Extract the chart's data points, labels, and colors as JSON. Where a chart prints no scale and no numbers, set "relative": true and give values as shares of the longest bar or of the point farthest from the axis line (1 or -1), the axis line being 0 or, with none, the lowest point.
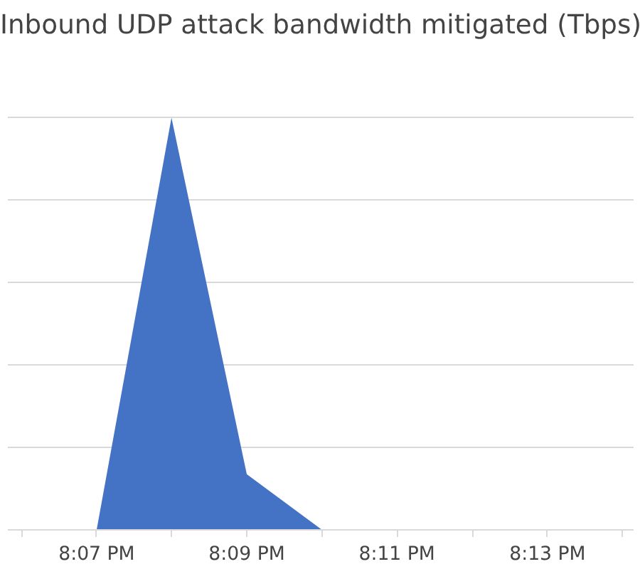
{
  "chart_data": {
    "type": "area",
    "title": "Inbound UDP attack bandwidth mitigated (Tbps)",
    "relative": true,
    "x": [
      20.1167,
      20.1333,
      20.15,
      20.1667
    ],
    "series": [
      {
        "color": "#4472c4",
        "values": [
          0,
          1,
          0.135,
          0
        ]
      }
    ],
    "xlim": [
      20.097,
      20.2358
    ],
    "xticks": [
      {
        "value": 20.1,
        "label": null
      },
      {
        "value": 20.1167,
        "label": "8:07 PM"
      },
      {
        "value": 20.1333,
        "label": null
      },
      {
        "value": 20.15,
        "label": "8:09 PM"
      },
      {
        "value": 20.1667,
        "label": null
      },
      {
        "value": 20.1833,
        "label": "8:11 PM"
      },
      {
        "value": 20.2,
        "label": null
      },
      {
        "value": 20.2167,
        "label": "8:13 PM"
      },
      {
        "value": 20.2333,
        "label": null
      }
    ],
    "grid": "y",
    "tick_labels": "x"
  }
}
